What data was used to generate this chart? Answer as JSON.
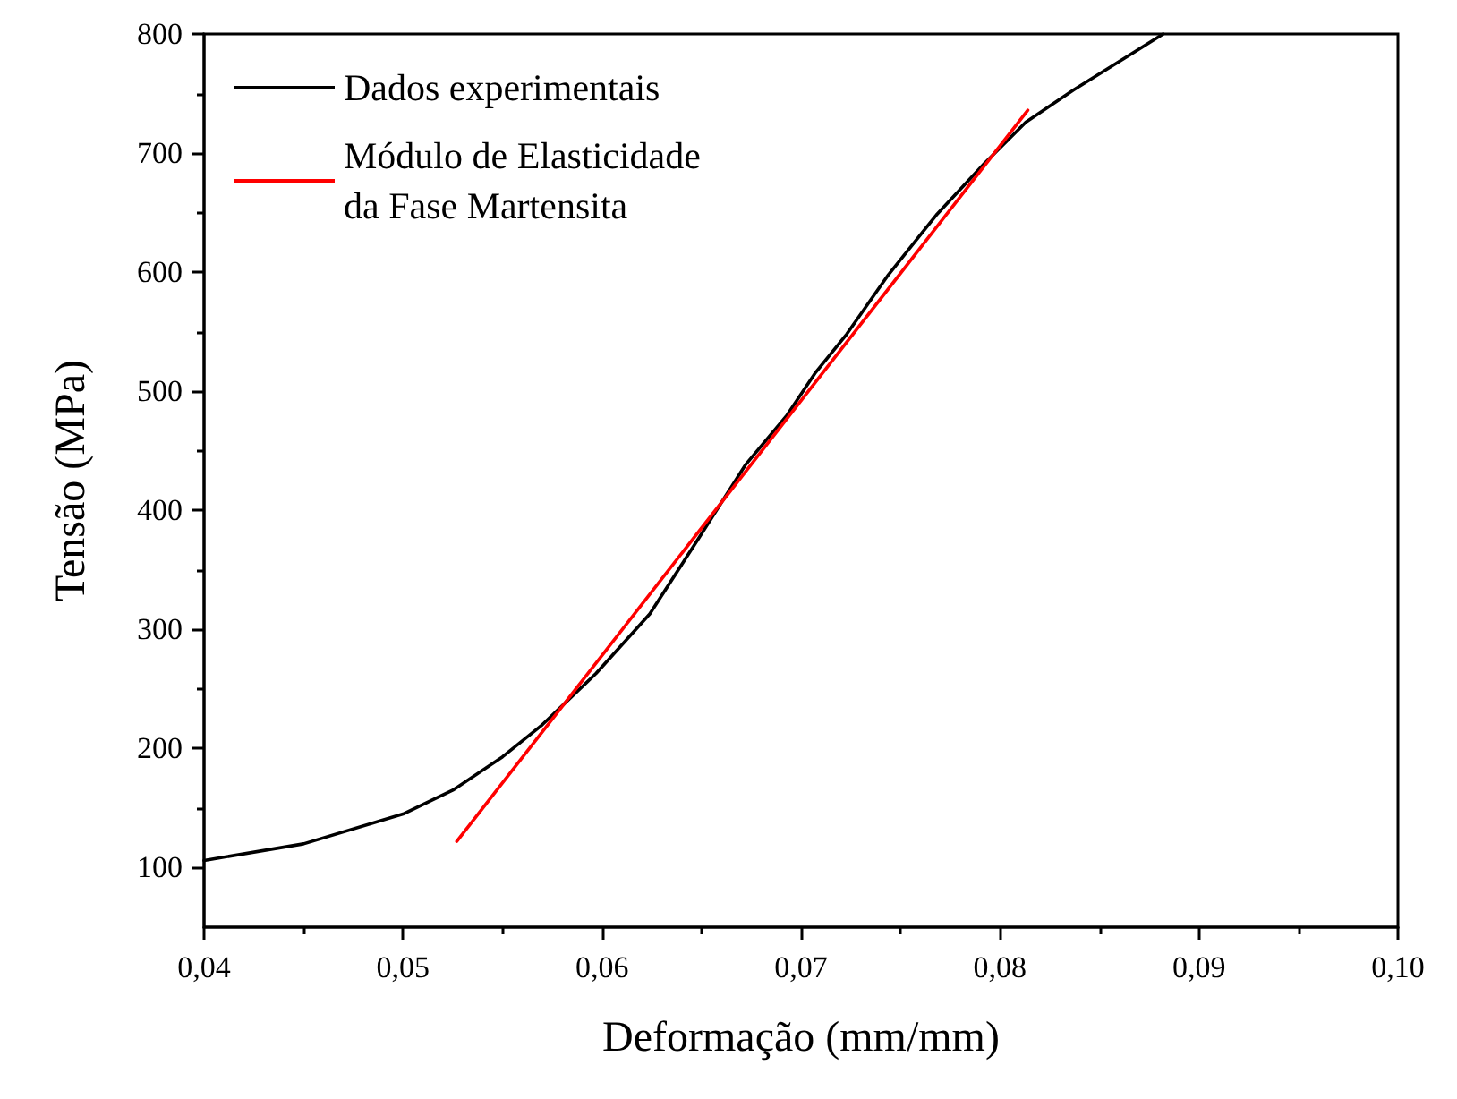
{
  "chart_data": {
    "type": "line",
    "xlabel": "Deformação (mm/mm)",
    "ylabel": "Tensão (MPa)",
    "xlim": [
      0.04,
      0.1
    ],
    "ylim": [
      50,
      800
    ],
    "xticks": [
      {
        "value": 0.04,
        "label": "0,04"
      },
      {
        "value": 0.045,
        "label": null
      },
      {
        "value": 0.05,
        "label": "0,05"
      },
      {
        "value": 0.055,
        "label": null
      },
      {
        "value": 0.06,
        "label": "0,06"
      },
      {
        "value": 0.065,
        "label": null
      },
      {
        "value": 0.07,
        "label": "0,07"
      },
      {
        "value": 0.075,
        "label": null
      },
      {
        "value": 0.08,
        "label": "0,08"
      },
      {
        "value": 0.085,
        "label": null
      },
      {
        "value": 0.09,
        "label": "0,09"
      },
      {
        "value": 0.095,
        "label": null
      },
      {
        "value": 0.1,
        "label": "0,10"
      }
    ],
    "yticks": [
      100,
      {
        "value": 150,
        "label": null
      },
      200,
      {
        "value": 250,
        "label": null
      },
      300,
      {
        "value": 350,
        "label": null
      },
      400,
      {
        "value": 450,
        "label": null
      },
      500,
      {
        "value": 550,
        "label": null
      },
      600,
      {
        "value": 650,
        "label": null
      },
      700,
      {
        "value": 750,
        "label": null
      },
      800
    ],
    "legend": "top left",
    "grid": false,
    "marker": "none",
    "line_style": "solid",
    "series": [
      {
        "name": "Dados experimentais",
        "color": "#000000",
        "x": [
          0.04,
          0.045,
          0.05,
          0.0525,
          0.055,
          0.057,
          0.0597,
          0.0624,
          0.0648,
          0.0672,
          0.0693,
          0.0707,
          0.0723,
          0.0744,
          0.0768,
          0.0792,
          0.0813,
          0.0837,
          0.0861,
          0.0882
        ],
        "values": [
          106,
          120,
          145,
          165,
          193,
          220,
          263,
          313,
          375,
          438,
          480,
          515,
          548,
          598,
          648,
          691,
          726,
          753,
          778,
          800
        ]
      },
      {
        "name": "Módulo de Elasticidade\nda Fase Martensita",
        "color": "#ff0000",
        "x": [
          0.0527,
          0.0814
        ],
        "values": [
          122,
          736
        ]
      }
    ]
  }
}
